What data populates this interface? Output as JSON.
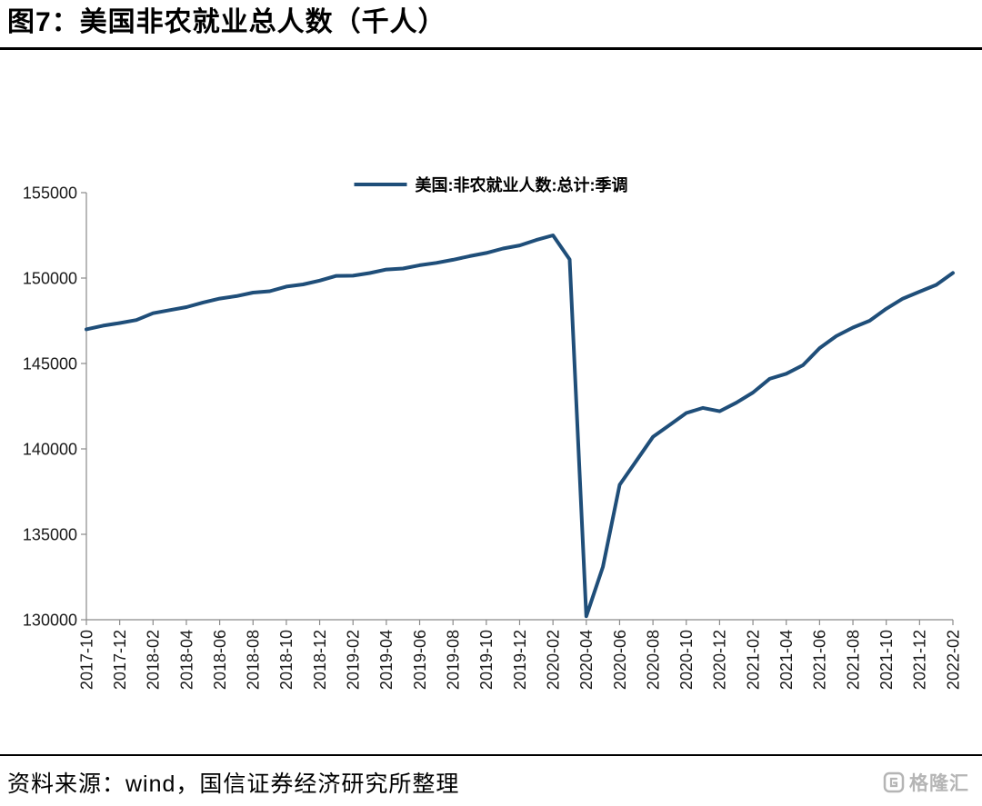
{
  "header": {
    "title": "图7：美国非农就业总人数（千人）"
  },
  "footer": {
    "source": "资料来源：wind，国信证券经济研究所整理",
    "watermark": "格隆汇"
  },
  "chart_data": {
    "type": "line",
    "title": "美国非农就业总人数（千人）",
    "legend_position": "top-center",
    "grid": false,
    "line_color": "#1F4E79",
    "ylim": [
      130000,
      155000
    ],
    "yticks": [
      130000,
      135000,
      140000,
      145000,
      150000,
      155000
    ],
    "xtick_every": 2,
    "x": [
      "2017-10",
      "2017-11",
      "2017-12",
      "2018-01",
      "2018-02",
      "2018-03",
      "2018-04",
      "2018-05",
      "2018-06",
      "2018-07",
      "2018-08",
      "2018-09",
      "2018-10",
      "2018-11",
      "2018-12",
      "2019-01",
      "2019-02",
      "2019-03",
      "2019-04",
      "2019-05",
      "2019-06",
      "2019-07",
      "2019-08",
      "2019-09",
      "2019-10",
      "2019-11",
      "2019-12",
      "2020-01",
      "2020-02",
      "2020-03",
      "2020-04",
      "2020-05",
      "2020-06",
      "2020-07",
      "2020-08",
      "2020-09",
      "2020-10",
      "2020-11",
      "2020-12",
      "2021-01",
      "2021-02",
      "2021-03",
      "2021-04",
      "2021-05",
      "2021-06",
      "2021-07",
      "2021-08",
      "2021-09",
      "2021-10",
      "2021-11",
      "2021-12",
      "2022-01",
      "2022-02"
    ],
    "series": [
      {
        "name": "美国:非农就业人数:总计:季调",
        "values": [
          147000,
          147215,
          147368,
          147543,
          147940,
          148125,
          148300,
          148570,
          148800,
          148940,
          149150,
          149230,
          149500,
          149630,
          149850,
          150130,
          150140,
          150290,
          150500,
          150560,
          150750,
          150890,
          151070,
          151280,
          151470,
          151730,
          151910,
          152230,
          152500,
          151090,
          130200,
          133100,
          137900,
          139300,
          140700,
          141400,
          142100,
          142400,
          142200,
          142700,
          143300,
          144100,
          144400,
          144900,
          145900,
          146600,
          147100,
          147500,
          148200,
          148800,
          149200,
          149600,
          150300
        ]
      }
    ]
  }
}
